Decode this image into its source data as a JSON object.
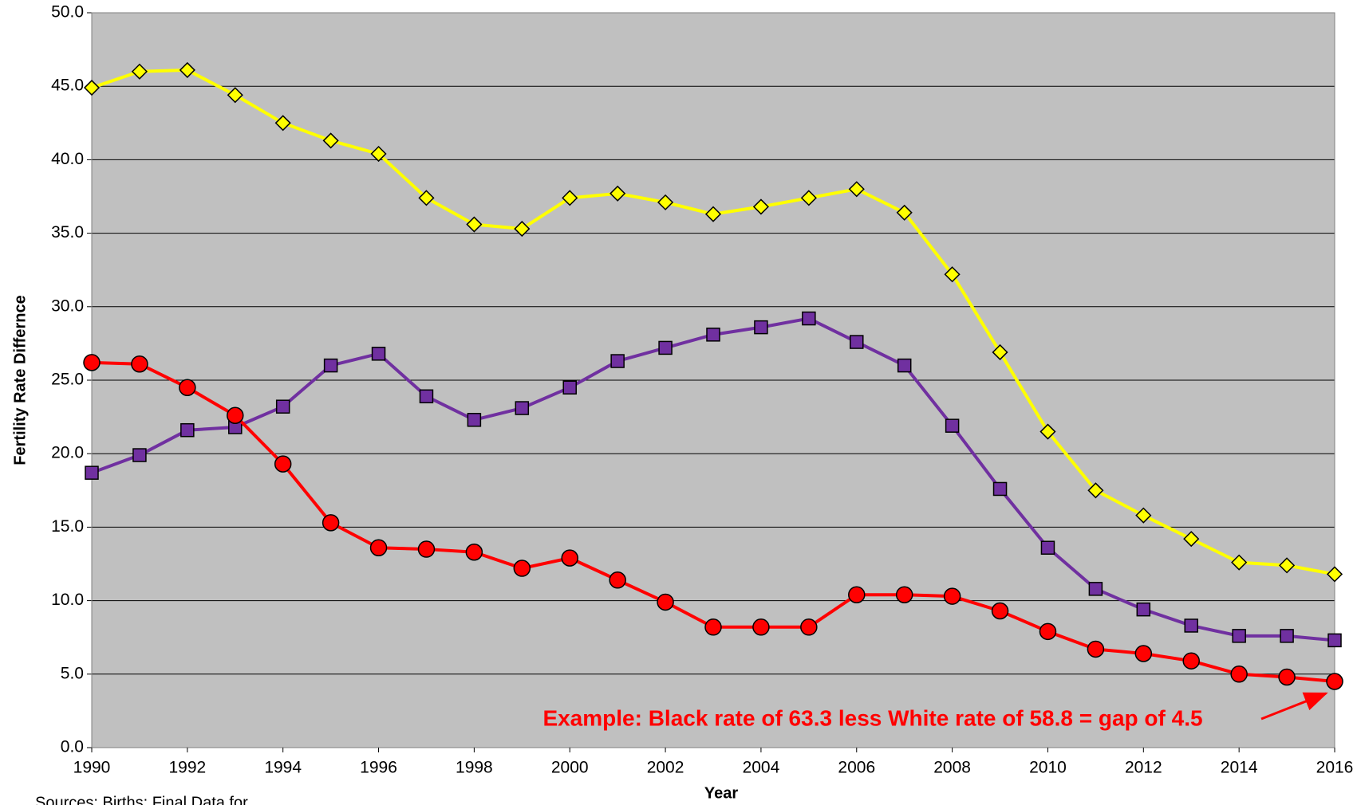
{
  "chart_data": {
    "type": "line",
    "x_label": "Year",
    "y_label": "Fertility Rate Differnce",
    "annotation": "Example: Black rate of 63.3 less White rate of 58.8 = gap of 4.5",
    "source": "Sources: Births: Final Data for",
    "x": [
      1990,
      1991,
      1992,
      1993,
      1994,
      1995,
      1996,
      1997,
      1998,
      1999,
      2000,
      2001,
      2002,
      2003,
      2004,
      2005,
      2006,
      2007,
      2008,
      2009,
      2010,
      2011,
      2012,
      2013,
      2014,
      2015,
      2016
    ],
    "xlim": [
      1990,
      2016
    ],
    "xticks": [
      1990,
      1992,
      1994,
      1996,
      1998,
      2000,
      2002,
      2004,
      2006,
      2008,
      2010,
      2012,
      2014,
      2016
    ],
    "ylim": [
      0,
      50
    ],
    "yticks": [
      {
        "value": 0,
        "label": "0.0"
      },
      {
        "value": 5,
        "label": "5.0"
      },
      {
        "value": 10,
        "label": "10.0"
      },
      {
        "value": 15,
        "label": "15.0"
      },
      {
        "value": 20,
        "label": "20.0"
      },
      {
        "value": 25,
        "label": "25.0"
      },
      {
        "value": 30,
        "label": "30.0"
      },
      {
        "value": 35,
        "label": "35.0"
      },
      {
        "value": 40,
        "label": "40.0"
      },
      {
        "value": 45,
        "label": "45.0"
      },
      {
        "value": 50,
        "label": "50.0"
      }
    ],
    "grid": true,
    "background": "#c0c0c0",
    "series": [
      {
        "color": "#ffff00",
        "marker": "diamond",
        "values": [
          44.9,
          46.0,
          46.1,
          44.4,
          42.5,
          41.3,
          40.4,
          37.4,
          35.6,
          35.3,
          37.4,
          37.7,
          37.1,
          36.3,
          36.8,
          37.4,
          38.0,
          36.4,
          32.2,
          26.9,
          21.5,
          17.5,
          15.8,
          14.2,
          12.6,
          12.4,
          11.8
        ]
      },
      {
        "color": "#7030a0",
        "marker": "square",
        "values": [
          18.7,
          19.9,
          21.6,
          21.8,
          23.2,
          26.0,
          26.8,
          23.9,
          22.3,
          23.1,
          24.5,
          26.3,
          27.2,
          28.1,
          28.6,
          29.2,
          27.6,
          26.0,
          21.9,
          17.6,
          13.6,
          10.8,
          9.4,
          8.3,
          7.6,
          7.6,
          7.3
        ]
      },
      {
        "color": "#ff0000",
        "marker": "circle",
        "values": [
          26.2,
          26.1,
          24.5,
          22.6,
          19.3,
          15.3,
          13.6,
          13.5,
          13.3,
          12.2,
          12.9,
          11.4,
          9.9,
          8.2,
          8.2,
          8.2,
          10.4,
          10.4,
          10.3,
          9.3,
          7.9,
          6.7,
          6.4,
          5.9,
          5.0,
          4.8,
          4.5
        ]
      }
    ]
  }
}
